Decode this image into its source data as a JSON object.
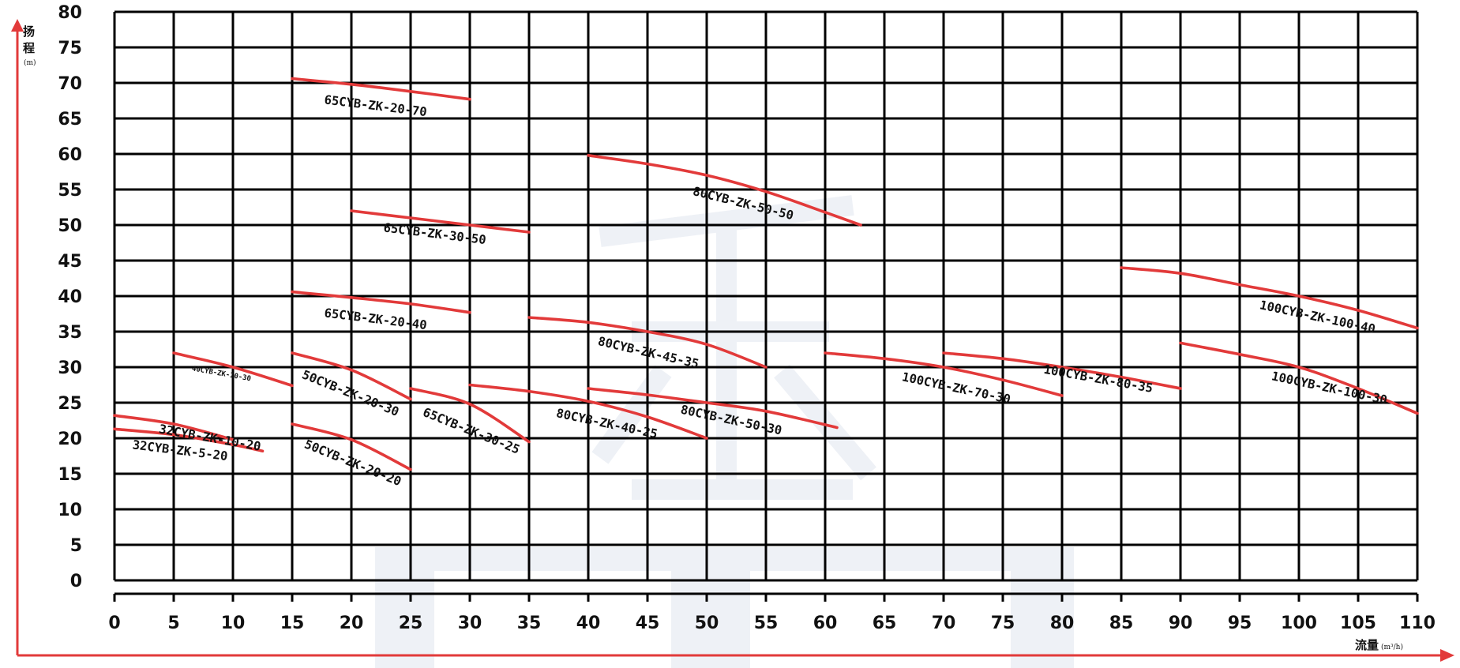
{
  "chart_data": {
    "type": "line",
    "xlabel": "流量",
    "xunit": "(m³/h)",
    "ylabel_chars": [
      "扬",
      "程"
    ],
    "yunit": "(m)",
    "xlim": [
      0,
      110
    ],
    "ylim": [
      0,
      80
    ],
    "x_ticks": [
      0,
      5,
      10,
      15,
      20,
      25,
      30,
      35,
      40,
      45,
      50,
      55,
      60,
      65,
      70,
      75,
      80,
      85,
      90,
      95,
      100,
      105,
      110
    ],
    "y_ticks": [
      0,
      5,
      10,
      15,
      20,
      25,
      30,
      35,
      40,
      45,
      50,
      55,
      60,
      65,
      70,
      75,
      80
    ],
    "grid": true,
    "curve_color": "#e23a3a",
    "axis_arrow_color": "#e23a3a",
    "grid_color": "#000000",
    "watermark_color": "#eef1f6",
    "series": [
      {
        "name": "32CYB-ZK-5-20",
        "x": [
          0,
          5,
          10,
          12.5
        ],
        "y": [
          21.3,
          20.5,
          19.1,
          18.2
        ],
        "lx": 5.5,
        "ly": 17.7,
        "rot": 7
      },
      {
        "name": "32CYB-ZK-10-20",
        "x": [
          0,
          5,
          10
        ],
        "y": [
          23.2,
          22,
          19.8
        ],
        "lx": 8,
        "ly": 19.5,
        "rot": 10
      },
      {
        "name": "40CYB-ZK-10-30",
        "x": [
          5,
          10,
          15
        ],
        "y": [
          32,
          30,
          27.4
        ],
        "lx": 9,
        "ly": 28.8,
        "rot": 10,
        "small": true
      },
      {
        "name": "50CYB-ZK-20-20",
        "x": [
          15,
          20,
          25
        ],
        "y": [
          22,
          19.8,
          15.6
        ],
        "lx": 20,
        "ly": 16,
        "rot": 22
      },
      {
        "name": "50CYB-ZK-20-30",
        "x": [
          15,
          20,
          25
        ],
        "y": [
          32,
          29.6,
          25.5
        ],
        "lx": 19.8,
        "ly": 25.8,
        "rot": 22
      },
      {
        "name": "65CYB-ZK-30-25",
        "x": [
          25,
          30,
          35
        ],
        "y": [
          27,
          24.8,
          19.5
        ],
        "lx": 30,
        "ly": 20.5,
        "rot": 22
      },
      {
        "name": "65CYB-ZK-20-40",
        "x": [
          15,
          20,
          25,
          30
        ],
        "y": [
          40.6,
          39.8,
          38.9,
          37.7
        ],
        "lx": 22,
        "ly": 36.2,
        "rot": 7
      },
      {
        "name": "65CYB-ZK-30-50",
        "x": [
          20,
          25,
          30,
          35
        ],
        "y": [
          52,
          51,
          50,
          49
        ],
        "lx": 27,
        "ly": 48.2,
        "rot": 7
      },
      {
        "name": "65CYB-ZK-20-70",
        "x": [
          15,
          20,
          25,
          30
        ],
        "y": [
          70.6,
          69.8,
          68.8,
          67.7
        ],
        "lx": 22,
        "ly": 66.2,
        "rot": 7
      },
      {
        "name": "80CYB-ZK-40-25",
        "x": [
          30,
          35,
          40,
          45,
          50
        ],
        "y": [
          27.5,
          26.6,
          25.2,
          23,
          20
        ],
        "lx": 41.5,
        "ly": 21.5,
        "rot": 12
      },
      {
        "name": "80CYB-ZK-50-30",
        "x": [
          40,
          45,
          50,
          55,
          61
        ],
        "y": [
          27,
          26.1,
          25,
          23.8,
          21.5
        ],
        "lx": 52,
        "ly": 22,
        "rot": 12
      },
      {
        "name": "80CYB-ZK-45-35",
        "x": [
          35,
          40,
          45,
          50,
          55
        ],
        "y": [
          37,
          36.3,
          35,
          33.2,
          30
        ],
        "lx": 45,
        "ly": 31.5,
        "rot": 13
      },
      {
        "name": "80CYB-ZK-50-50",
        "x": [
          40,
          45,
          50,
          55,
          60,
          63
        ],
        "y": [
          59.8,
          58.6,
          57,
          54.7,
          51.8,
          50
        ],
        "lx": 53,
        "ly": 52.5,
        "rot": 14
      },
      {
        "name": "100CYB-ZK-70-30",
        "x": [
          60,
          65,
          70,
          75,
          80
        ],
        "y": [
          32,
          31.2,
          30,
          28.2,
          26
        ],
        "lx": 71,
        "ly": 26.5,
        "rot": 12
      },
      {
        "name": "100CYB-ZK-80-35",
        "x": [
          70,
          75,
          80,
          85,
          90
        ],
        "y": [
          32,
          31.2,
          30,
          28.6,
          27
        ],
        "lx": 83,
        "ly": 27.8,
        "rot": 10
      },
      {
        "name": "100CYB-ZK-100-30",
        "x": [
          90,
          95,
          100,
          105,
          110
        ],
        "y": [
          33.4,
          31.8,
          30,
          27,
          23.5
        ],
        "lx": 102.5,
        "ly": 26.5,
        "rot": 12
      },
      {
        "name": "100CYB-ZK-100-40",
        "x": [
          85,
          90,
          95,
          100,
          105,
          110
        ],
        "y": [
          44,
          43.2,
          41.6,
          40,
          38,
          35.5
        ],
        "lx": 101.5,
        "ly": 36.5,
        "rot": 12
      }
    ]
  }
}
